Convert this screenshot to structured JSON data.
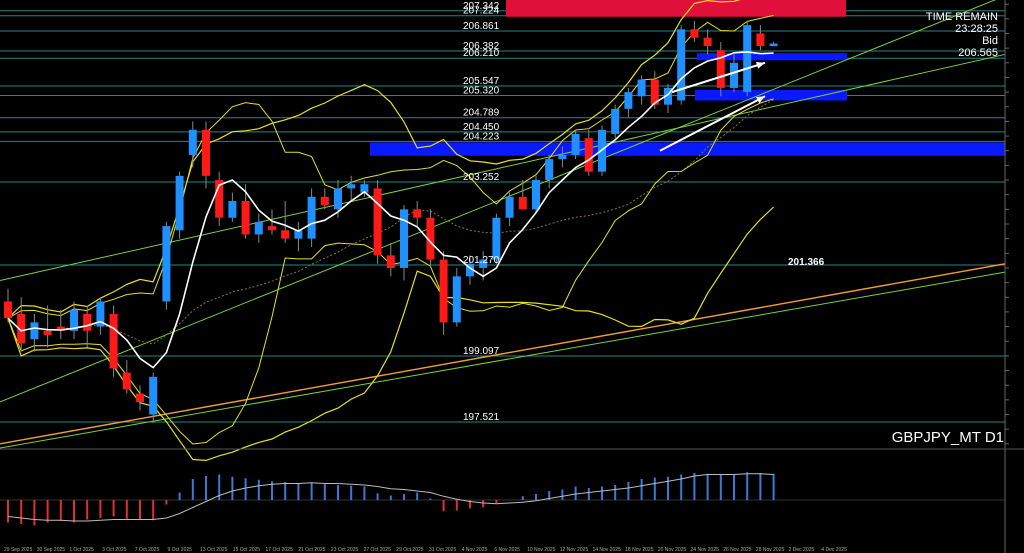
{
  "window": {
    "symbol_timeframe": "GBPJPY_MT D1"
  },
  "info_panel": {
    "time_remain_label": "TIME REMAIN",
    "time_remain_value": "23:28:25",
    "bid_label": "Bid",
    "bid_value": "206.565"
  },
  "colors": {
    "background": "#000000",
    "bull_candle": "#1e90ff",
    "bear_candle": "#ff1a1a",
    "ma_white": "#ffffff",
    "envelope_yellow": "#e8e020",
    "trend_green": "#7ad13a",
    "trend_orange": "#f0a030",
    "zone_blue": "#0a1aff",
    "zone_red": "#e0103a",
    "level_line": "#2fa7a7",
    "osc_up": "#3a7bd5",
    "osc_down": "#e03030"
  },
  "chart_data": {
    "type": "candlestick",
    "instrument": "GBPJPY_MT",
    "timeframe": "D1",
    "ylim": [
      196.9,
      207.6
    ],
    "price_levels": [
      {
        "label": "207.342",
        "value": 207.342
      },
      {
        "label": "207.224",
        "value": 207.224
      },
      {
        "label": "206.861",
        "value": 206.861
      },
      {
        "label": "206.382",
        "value": 206.382
      },
      {
        "label": "206.210",
        "value": 206.21
      },
      {
        "label": "205.547",
        "value": 205.547
      },
      {
        "label": "205.320",
        "value": 205.32
      },
      {
        "label": "204.789",
        "value": 204.789
      },
      {
        "label": "204.450",
        "value": 204.45
      },
      {
        "label": "204.223",
        "value": 204.223
      },
      {
        "label": "203.252",
        "value": 203.252
      },
      {
        "label": "201.270",
        "value": 201.27
      },
      {
        "label": "199.097",
        "value": 199.097
      },
      {
        "label": "197.521",
        "value": 197.521
      }
    ],
    "annotation": {
      "text": "201.366",
      "value": 201.366
    },
    "x_labels": [
      "29 Sep 2025",
      "30 Sep 2025",
      "1 Oct 2025",
      "3 Oct 2025",
      "7 Oct 2025",
      "9 Oct 2025",
      "13 Oct 2025",
      "15 Oct 2025",
      "17 Oct 2025",
      "21 Oct 2025",
      "23 Oct 2025",
      "27 Oct 2025",
      "29 Oct 2025",
      "31 Oct 2025",
      "4 Nov 2025",
      "6 Nov 2025",
      "10 Nov 2025",
      "12 Nov 2025",
      "14 Nov 2025",
      "18 Nov 2025",
      "20 Nov 2025",
      "24 Nov 2025",
      "26 Nov 2025",
      "28 Nov 2025",
      "2 Dec 2025",
      "4 Dec 2025"
    ],
    "candles": [
      {
        "o": 200.4,
        "h": 200.7,
        "l": 199.9,
        "c": 200.0
      },
      {
        "o": 200.1,
        "h": 200.5,
        "l": 199.2,
        "c": 199.4
      },
      {
        "o": 199.5,
        "h": 200.1,
        "l": 199.2,
        "c": 199.9
      },
      {
        "o": 199.7,
        "h": 200.3,
        "l": 199.3,
        "c": 199.6
      },
      {
        "o": 199.8,
        "h": 200.2,
        "l": 199.5,
        "c": 199.7
      },
      {
        "o": 199.7,
        "h": 200.4,
        "l": 199.5,
        "c": 200.2
      },
      {
        "o": 200.1,
        "h": 200.3,
        "l": 199.3,
        "c": 199.7
      },
      {
        "o": 199.8,
        "h": 200.5,
        "l": 199.6,
        "c": 200.4
      },
      {
        "o": 200.1,
        "h": 200.3,
        "l": 198.6,
        "c": 198.8
      },
      {
        "o": 198.7,
        "h": 199.0,
        "l": 198.2,
        "c": 198.3
      },
      {
        "o": 198.2,
        "h": 198.4,
        "l": 197.8,
        "c": 198.0
      },
      {
        "o": 197.7,
        "h": 198.7,
        "l": 197.5,
        "c": 198.6
      },
      {
        "o": 200.4,
        "h": 202.3,
        "l": 200.2,
        "c": 202.2
      },
      {
        "o": 202.1,
        "h": 203.5,
        "l": 201.9,
        "c": 203.4
      },
      {
        "o": 203.9,
        "h": 204.7,
        "l": 203.6,
        "c": 204.5
      },
      {
        "o": 204.5,
        "h": 204.7,
        "l": 203.1,
        "c": 203.4
      },
      {
        "o": 203.3,
        "h": 203.5,
        "l": 202.2,
        "c": 202.4
      },
      {
        "o": 202.4,
        "h": 203.0,
        "l": 202.3,
        "c": 202.8
      },
      {
        "o": 202.8,
        "h": 203.2,
        "l": 201.9,
        "c": 202.0
      },
      {
        "o": 202.0,
        "h": 202.5,
        "l": 201.8,
        "c": 202.3
      },
      {
        "o": 202.2,
        "h": 202.6,
        "l": 202.0,
        "c": 202.1
      },
      {
        "o": 202.1,
        "h": 202.8,
        "l": 201.8,
        "c": 201.9
      },
      {
        "o": 201.9,
        "h": 202.3,
        "l": 201.6,
        "c": 202.1
      },
      {
        "o": 201.9,
        "h": 203.1,
        "l": 201.7,
        "c": 202.9
      },
      {
        "o": 202.9,
        "h": 203.1,
        "l": 202.6,
        "c": 202.7
      },
      {
        "o": 202.6,
        "h": 203.3,
        "l": 202.4,
        "c": 203.1
      },
      {
        "o": 203.1,
        "h": 203.4,
        "l": 202.8,
        "c": 203.2
      },
      {
        "o": 203.0,
        "h": 203.3,
        "l": 202.9,
        "c": 203.2
      },
      {
        "o": 203.1,
        "h": 203.3,
        "l": 201.3,
        "c": 201.5
      },
      {
        "o": 201.5,
        "h": 201.8,
        "l": 201.0,
        "c": 201.2
      },
      {
        "o": 201.2,
        "h": 202.7,
        "l": 200.9,
        "c": 202.6
      },
      {
        "o": 202.6,
        "h": 202.8,
        "l": 202.2,
        "c": 202.4
      },
      {
        "o": 202.4,
        "h": 202.6,
        "l": 201.2,
        "c": 201.4
      },
      {
        "o": 201.4,
        "h": 201.6,
        "l": 199.6,
        "c": 199.9
      },
      {
        "o": 199.9,
        "h": 201.2,
        "l": 199.8,
        "c": 201.0
      },
      {
        "o": 201.0,
        "h": 201.5,
        "l": 200.8,
        "c": 201.3
      },
      {
        "o": 201.2,
        "h": 201.6,
        "l": 200.9,
        "c": 201.4
      },
      {
        "o": 201.4,
        "h": 202.5,
        "l": 201.3,
        "c": 202.4
      },
      {
        "o": 202.4,
        "h": 203.0,
        "l": 202.2,
        "c": 202.9
      },
      {
        "o": 202.9,
        "h": 203.3,
        "l": 202.6,
        "c": 202.6
      },
      {
        "o": 202.6,
        "h": 203.4,
        "l": 202.5,
        "c": 203.3
      },
      {
        "o": 203.3,
        "h": 203.9,
        "l": 203.1,
        "c": 203.8
      },
      {
        "o": 203.8,
        "h": 204.1,
        "l": 203.6,
        "c": 203.9
      },
      {
        "o": 203.9,
        "h": 204.5,
        "l": 203.8,
        "c": 204.4
      },
      {
        "o": 204.3,
        "h": 204.5,
        "l": 203.4,
        "c": 203.5
      },
      {
        "o": 203.5,
        "h": 204.6,
        "l": 203.4,
        "c": 204.5
      },
      {
        "o": 204.4,
        "h": 205.1,
        "l": 204.3,
        "c": 205.0
      },
      {
        "o": 205.0,
        "h": 205.5,
        "l": 204.8,
        "c": 205.4
      },
      {
        "o": 205.3,
        "h": 205.8,
        "l": 205.1,
        "c": 205.7
      },
      {
        "o": 205.7,
        "h": 205.9,
        "l": 205.0,
        "c": 205.1
      },
      {
        "o": 205.1,
        "h": 205.6,
        "l": 204.9,
        "c": 205.5
      },
      {
        "o": 205.2,
        "h": 207.0,
        "l": 205.1,
        "c": 206.9
      },
      {
        "o": 206.9,
        "h": 207.1,
        "l": 206.6,
        "c": 206.7
      },
      {
        "o": 206.7,
        "h": 206.9,
        "l": 206.3,
        "c": 206.5
      },
      {
        "o": 206.4,
        "h": 206.6,
        "l": 205.3,
        "c": 205.5
      },
      {
        "o": 205.5,
        "h": 206.3,
        "l": 205.4,
        "c": 206.1
      },
      {
        "o": 205.4,
        "h": 207.1,
        "l": 205.3,
        "c": 207.0
      },
      {
        "o": 206.8,
        "h": 207.0,
        "l": 206.4,
        "c": 206.5
      },
      {
        "o": 206.5,
        "h": 206.6,
        "l": 206.5,
        "c": 206.56
      }
    ],
    "oscillator": {
      "ylim": [
        -0.6,
        0.6
      ],
      "histogram": [
        -0.3,
        -0.32,
        -0.34,
        -0.3,
        -0.28,
        -0.3,
        -0.26,
        -0.24,
        -0.22,
        -0.25,
        -0.26,
        -0.27,
        -0.06,
        0.1,
        0.28,
        0.32,
        0.34,
        0.31,
        0.29,
        0.27,
        0.25,
        0.24,
        0.22,
        0.23,
        0.21,
        0.2,
        0.19,
        0.18,
        0.09,
        0.06,
        0.08,
        0.1,
        0.02,
        -0.15,
        -0.14,
        -0.11,
        -0.1,
        -0.04,
        0.0,
        0.05,
        0.08,
        0.12,
        0.14,
        0.18,
        0.16,
        0.18,
        0.2,
        0.24,
        0.28,
        0.3,
        0.31,
        0.34,
        0.36,
        0.35,
        0.34,
        0.34,
        0.37,
        0.36,
        0.35
      ],
      "signal": [
        -0.22,
        -0.24,
        -0.26,
        -0.27,
        -0.27,
        -0.28,
        -0.28,
        -0.27,
        -0.26,
        -0.26,
        -0.26,
        -0.26,
        -0.24,
        -0.18,
        -0.1,
        -0.02,
        0.06,
        0.12,
        0.16,
        0.19,
        0.21,
        0.22,
        0.22,
        0.23,
        0.22,
        0.22,
        0.21,
        0.2,
        0.18,
        0.15,
        0.14,
        0.12,
        0.1,
        0.05,
        0.01,
        -0.02,
        -0.04,
        -0.05,
        -0.04,
        -0.03,
        -0.01,
        0.02,
        0.05,
        0.08,
        0.1,
        0.12,
        0.14,
        0.16,
        0.19,
        0.22,
        0.25,
        0.28,
        0.32,
        0.34,
        0.34,
        0.34,
        0.35,
        0.35,
        0.34
      ]
    }
  }
}
